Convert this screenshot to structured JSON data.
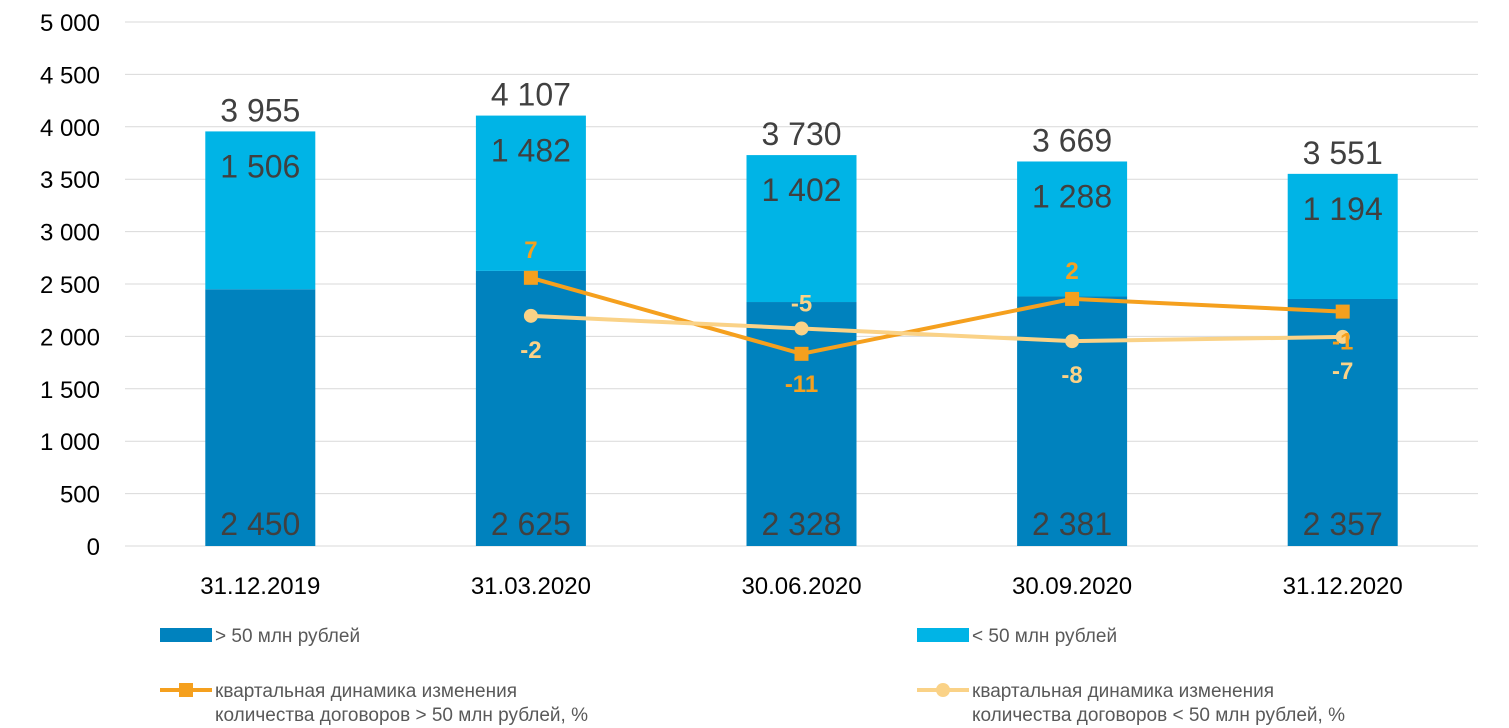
{
  "chart_data": {
    "type": "bar",
    "stacked": true,
    "categories": [
      "31.12.2019",
      "31.03.2020",
      "30.06.2020",
      "30.09.2020",
      "31.12.2020"
    ],
    "yticks": [
      "0",
      "500",
      "1 000",
      "1 500",
      "2 000",
      "2 500",
      "3 000",
      "3 500",
      "4 000",
      "4 500",
      "5 000"
    ],
    "ylim": [
      0,
      5000
    ],
    "grid": true,
    "series": [
      {
        "name": "> 50 млн рублей",
        "kind": "bar",
        "color": "#0082BE",
        "values": [
          2450,
          2625,
          2328,
          2381,
          2357
        ],
        "labels": [
          "2 450",
          "2 625",
          "2 328",
          "2 381",
          "2 357"
        ]
      },
      {
        "name": "< 50 млн рублей",
        "kind": "bar",
        "color": "#00B4E6",
        "values": [
          1506,
          1482,
          1402,
          1288,
          1194
        ],
        "labels": [
          "1 506",
          "1 482",
          "1 402",
          "1 288",
          "1 194"
        ]
      }
    ],
    "totals": [
      "3 955",
      "4 107",
      "3 730",
      "3 669",
      "3 551"
    ],
    "lines": [
      {
        "name": "квартальная динамика изменения количества договоров >  50 млн рублей, %",
        "name_lines": [
          "квартальная динамика изменения",
          "количества договоров >  50 млн рублей, %"
        ],
        "color": "#F5A01E",
        "marker": "square",
        "categories_index": [
          1,
          2,
          3,
          4
        ],
        "values": [
          7,
          -11,
          2,
          -1
        ],
        "labels": [
          "7",
          "-11",
          "2",
          "-1"
        ]
      },
      {
        "name": "квартальная динамика изменения количества договоров <  50 млн рублей, %",
        "name_lines": [
          "квартальная динамика изменения",
          "количества договоров <  50 млн рублей, %"
        ],
        "color": "#FAD287",
        "marker": "circle",
        "categories_index": [
          1,
          2,
          3,
          4
        ],
        "values": [
          -2,
          -5,
          -8,
          -7
        ],
        "labels": [
          "-2",
          "-5",
          "-8",
          "-7"
        ]
      }
    ],
    "legend_position": "bottom"
  }
}
